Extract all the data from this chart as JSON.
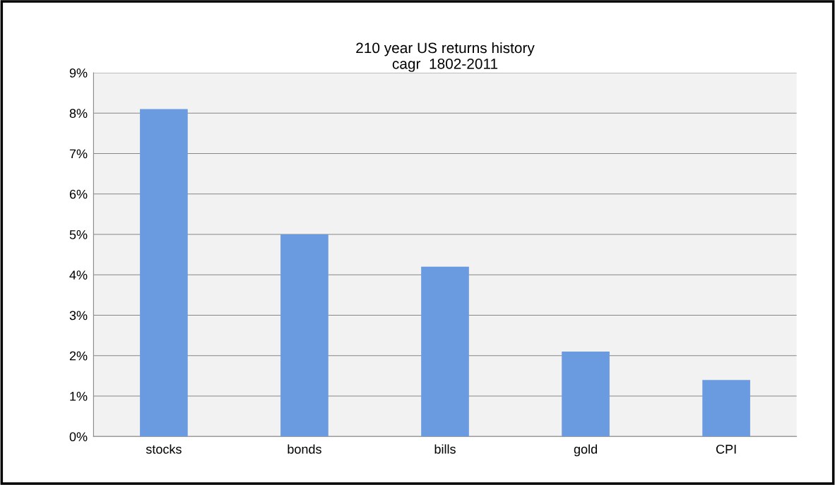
{
  "chart_data": {
    "type": "bar",
    "title": "210 year US returns history\ncagr  1802-2011",
    "categories": [
      "stocks",
      "bonds",
      "bills",
      "gold",
      "CPI"
    ],
    "values": [
      8.1,
      5.0,
      4.2,
      2.1,
      1.4
    ],
    "color": "#6a9be0",
    "ylim": [
      0,
      9
    ],
    "yticks": [
      {
        "value": 0,
        "label": "0%"
      },
      {
        "value": 1,
        "label": "1%"
      },
      {
        "value": 2,
        "label": "2%"
      },
      {
        "value": 3,
        "label": "3%"
      },
      {
        "value": 4,
        "label": "4%"
      },
      {
        "value": 5,
        "label": "5%"
      },
      {
        "value": 6,
        "label": "6%"
      },
      {
        "value": 7,
        "label": "7%"
      },
      {
        "value": 8,
        "label": "8%"
      },
      {
        "value": 9,
        "label": "9%"
      }
    ],
    "grid": "y",
    "legend": false
  }
}
